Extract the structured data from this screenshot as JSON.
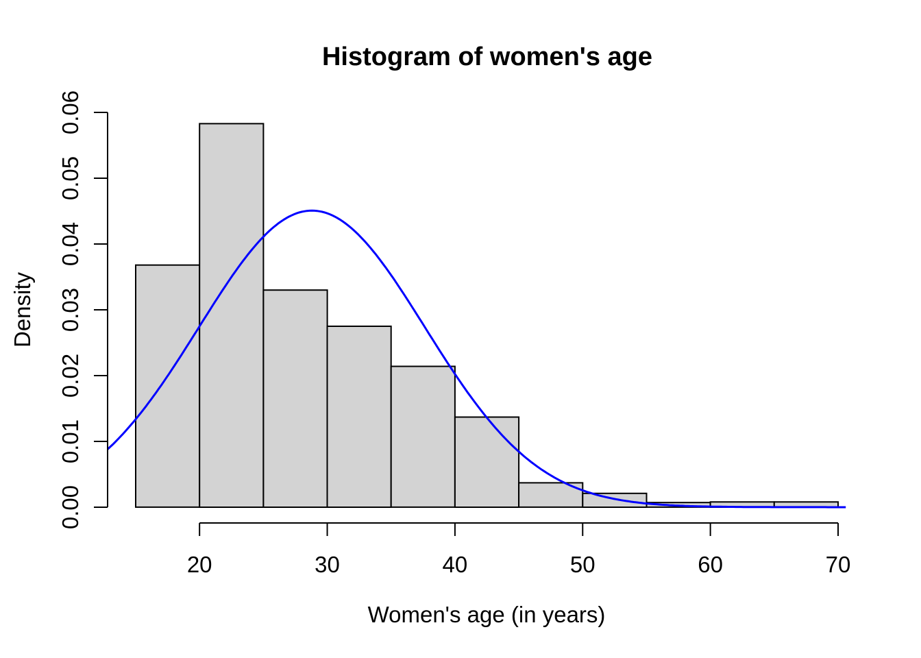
{
  "chart_data": {
    "type": "bar",
    "subtype": "histogram-with-density-curve",
    "title": "Histogram of women's age",
    "xlabel": "Women's age (in years)",
    "ylabel": "Density",
    "bin_edges": [
      15,
      20,
      25,
      30,
      35,
      40,
      45,
      50,
      55,
      60,
      65,
      70
    ],
    "densities": [
      0.0368,
      0.0583,
      0.033,
      0.0275,
      0.0214,
      0.0137,
      0.0037,
      0.0021,
      0.0007,
      0.0008,
      0.0008
    ],
    "x_ticks": [
      "20",
      "30",
      "40",
      "50",
      "60",
      "70"
    ],
    "y_ticks": [
      "0.00",
      "0.01",
      "0.02",
      "0.03",
      "0.04",
      "0.05",
      "0.06"
    ],
    "xlim": [
      12.8,
      72.2
    ],
    "ylim": [
      -0.0024,
      0.0624
    ],
    "grid": "off",
    "legend": "none",
    "curve": {
      "distribution": "normal",
      "mean": 28.8,
      "sd": 8.85,
      "peak_density": 0.045,
      "x_range": [
        12.8,
        70.6
      ],
      "color": "#0000ff"
    },
    "colors": {
      "bar_fill": "#d3d3d3",
      "bar_stroke": "#000000",
      "axis": "#000000",
      "background": "#ffffff"
    }
  }
}
